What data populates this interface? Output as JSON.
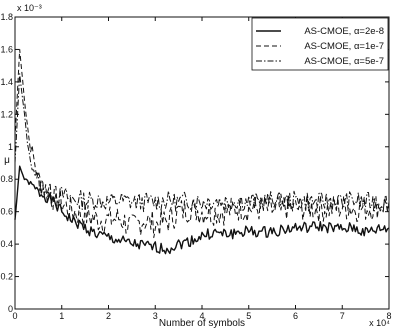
{
  "chart_data": {
    "type": "line",
    "title": "",
    "xlabel": "Number of symbols",
    "ylabel": "μ",
    "x_multiplier": "x 10⁴",
    "y_multiplier": "x 10⁻³",
    "xlim": [
      0,
      8
    ],
    "ylim": [
      0,
      1.8
    ],
    "xticks": [
      "0",
      "1",
      "2",
      "3",
      "4",
      "5",
      "6",
      "7",
      "8"
    ],
    "yticks": [
      "0",
      "0.2",
      "0.4",
      "0.6",
      "0.8",
      "1",
      "1.2",
      "1.4",
      "1.6",
      "1.8"
    ],
    "grid": false,
    "legend_position": "top-right",
    "x": [
      0.0,
      0.1,
      0.2,
      0.3,
      0.5,
      0.75,
      1.0,
      1.25,
      1.5,
      1.75,
      2.0,
      2.25,
      2.5,
      2.75,
      3.0,
      3.25,
      3.5,
      3.75,
      4.0,
      4.25,
      4.5,
      4.75,
      5.0,
      5.25,
      5.5,
      5.75,
      6.0,
      6.25,
      6.5,
      6.75,
      7.0,
      7.25,
      7.5,
      7.75,
      8.0
    ],
    "series": [
      {
        "name": "AS-CMOE, α=2e-8",
        "style": "solid",
        "values": [
          0.55,
          0.88,
          0.8,
          0.78,
          0.72,
          0.68,
          0.6,
          0.54,
          0.5,
          0.46,
          0.44,
          0.42,
          0.4,
          0.39,
          0.38,
          0.37,
          0.4,
          0.42,
          0.45,
          0.47,
          0.46,
          0.47,
          0.48,
          0.47,
          0.48,
          0.49,
          0.5,
          0.5,
          0.51,
          0.5,
          0.49,
          0.5,
          0.47,
          0.49,
          0.5
        ]
      },
      {
        "name": "AS-CMOE, α=1e-7",
        "style": "dashed",
        "values": [
          1.05,
          1.6,
          1.3,
          1.05,
          0.8,
          0.7,
          0.65,
          0.6,
          0.58,
          0.55,
          0.55,
          0.56,
          0.5,
          0.55,
          0.52,
          0.54,
          0.6,
          0.62,
          0.6,
          0.6,
          0.6,
          0.62,
          0.62,
          0.62,
          0.61,
          0.63,
          0.62,
          0.63,
          0.62,
          0.62,
          0.63,
          0.62,
          0.62,
          0.64,
          0.65
        ]
      },
      {
        "name": "AS-CMOE, α=5e-7",
        "style": "dashdot",
        "values": [
          0.9,
          1.45,
          1.2,
          0.95,
          0.78,
          0.72,
          0.7,
          0.68,
          0.67,
          0.67,
          0.66,
          0.67,
          0.66,
          0.66,
          0.66,
          0.67,
          0.66,
          0.67,
          0.66,
          0.67,
          0.66,
          0.67,
          0.66,
          0.66,
          0.67,
          0.66,
          0.67,
          0.66,
          0.66,
          0.67,
          0.66,
          0.67,
          0.66,
          0.66,
          0.66
        ]
      }
    ]
  }
}
